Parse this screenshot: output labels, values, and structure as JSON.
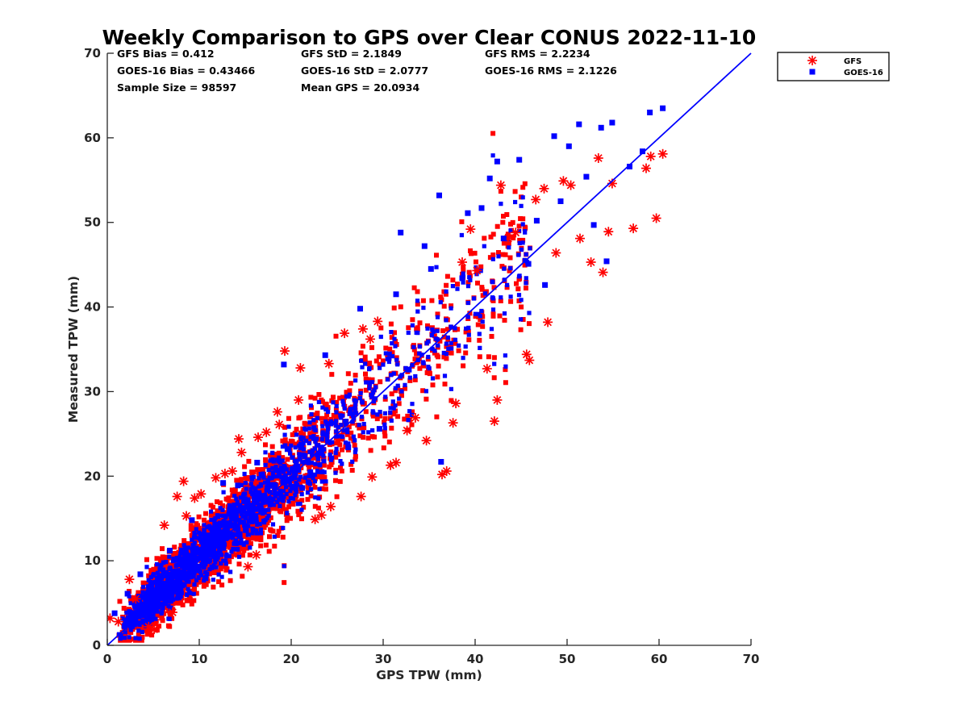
{
  "chart_data": {
    "type": "scatter",
    "title": "Weekly Comparison to GPS over Clear CONUS 2022-11-10",
    "xlabel": "GPS TPW (mm)",
    "ylabel": "Measured TPW (mm)",
    "xlim": [
      0,
      70
    ],
    "ylim": [
      0,
      70
    ],
    "xticks": [
      "0",
      "10",
      "20",
      "30",
      "40",
      "50",
      "60",
      "70"
    ],
    "yticks": [
      "0",
      "10",
      "20",
      "30",
      "40",
      "50",
      "60",
      "70"
    ],
    "legend_position": "outside-top-right",
    "grid": false,
    "one_to_one_line": [
      [
        0,
        0
      ],
      [
        70,
        70
      ]
    ],
    "stats": [
      [
        "GFS Bias = 0.412",
        "GFS StD = 2.1849",
        "GFS RMS = 2.2234"
      ],
      [
        "GOES-16 Bias = 0.43466",
        "GOES-16 StD = 2.0777",
        "GOES-16 RMS = 2.1226"
      ],
      [
        "Sample Size = 98597",
        "Mean GPS = 20.0934",
        ""
      ]
    ],
    "series": [
      {
        "name": "GFS",
        "marker": "asterisk",
        "color": "#ff0000",
        "points": [
          [
            0.3,
            3.2
          ],
          [
            1.2,
            2.8
          ],
          [
            2.4,
            7.8
          ],
          [
            3.1,
            5.5
          ],
          [
            4.5,
            2.2
          ],
          [
            5.1,
            1.9
          ],
          [
            6.2,
            14.2
          ],
          [
            7.1,
            3.9
          ],
          [
            7.6,
            17.6
          ],
          [
            8.3,
            19.4
          ],
          [
            8.6,
            15.3
          ],
          [
            9.5,
            17.4
          ],
          [
            10.2,
            17.9
          ],
          [
            11.8,
            19.8
          ],
          [
            12.8,
            20.3
          ],
          [
            13.6,
            20.6
          ],
          [
            14.3,
            24.4
          ],
          [
            14.6,
            22.8
          ],
          [
            15.3,
            9.3
          ],
          [
            16.4,
            24.6
          ],
          [
            16.2,
            10.7
          ],
          [
            17.3,
            25.2
          ],
          [
            18.5,
            27.6
          ],
          [
            18.7,
            26.1
          ],
          [
            19.3,
            34.8
          ],
          [
            20.8,
            29.0
          ],
          [
            21.0,
            32.8
          ],
          [
            22.6,
            14.9
          ],
          [
            23.3,
            15.4
          ],
          [
            24.1,
            33.3
          ],
          [
            24.3,
            16.4
          ],
          [
            25.8,
            36.9
          ],
          [
            27.6,
            17.6
          ],
          [
            27.8,
            37.4
          ],
          [
            28.6,
            36.2
          ],
          [
            28.8,
            19.9
          ],
          [
            29.4,
            38.3
          ],
          [
            30.8,
            21.3
          ],
          [
            31.4,
            21.6
          ],
          [
            32.6,
            25.4
          ],
          [
            33.5,
            26.9
          ],
          [
            34.7,
            24.2
          ],
          [
            36.4,
            20.2
          ],
          [
            36.9,
            20.6
          ],
          [
            37.6,
            26.3
          ],
          [
            37.9,
            28.6
          ],
          [
            38.6,
            45.3
          ],
          [
            39.5,
            49.2
          ],
          [
            40.2,
            44.3
          ],
          [
            41.3,
            32.7
          ],
          [
            42.1,
            26.5
          ],
          [
            42.4,
            29.0
          ],
          [
            42.8,
            54.4
          ],
          [
            43.6,
            48.1
          ],
          [
            44.4,
            48.8
          ],
          [
            45.6,
            34.4
          ],
          [
            45.9,
            33.7
          ],
          [
            46.6,
            52.7
          ],
          [
            47.5,
            54.0
          ],
          [
            47.9,
            38.2
          ],
          [
            48.8,
            46.4
          ],
          [
            49.6,
            54.9
          ],
          [
            50.4,
            54.4
          ],
          [
            51.4,
            48.1
          ],
          [
            52.6,
            45.3
          ],
          [
            53.4,
            57.6
          ],
          [
            53.9,
            44.1
          ],
          [
            54.5,
            48.9
          ],
          [
            54.9,
            54.6
          ],
          [
            57.2,
            49.3
          ],
          [
            58.6,
            56.4
          ],
          [
            59.1,
            57.8
          ],
          [
            59.7,
            50.5
          ],
          [
            60.4,
            58.1
          ]
        ]
      },
      {
        "name": "GOES-16",
        "marker": "square",
        "color": "#0000ff",
        "points": [
          [
            0.8,
            3.8
          ],
          [
            2.2,
            6.1
          ],
          [
            3.6,
            8.4
          ],
          [
            5.5,
            4.6
          ],
          [
            6.8,
            11.2
          ],
          [
            9.2,
            14.8
          ],
          [
            12.6,
            19.2
          ],
          [
            14.2,
            18.9
          ],
          [
            16.3,
            21.6
          ],
          [
            19.2,
            33.2
          ],
          [
            21.2,
            18.6
          ],
          [
            23.7,
            34.3
          ],
          [
            26.2,
            23.4
          ],
          [
            27.5,
            39.8
          ],
          [
            29.6,
            25.6
          ],
          [
            31.4,
            41.5
          ],
          [
            31.9,
            48.8
          ],
          [
            32.8,
            32.6
          ],
          [
            34.5,
            47.2
          ],
          [
            35.2,
            44.5
          ],
          [
            36.1,
            53.2
          ],
          [
            36.3,
            21.7
          ],
          [
            38.6,
            43.4
          ],
          [
            39.2,
            51.1
          ],
          [
            40.7,
            51.7
          ],
          [
            41.6,
            55.2
          ],
          [
            42.4,
            57.2
          ],
          [
            43.1,
            48.1
          ],
          [
            44.8,
            57.4
          ],
          [
            45.8,
            45.1
          ],
          [
            46.7,
            50.2
          ],
          [
            47.6,
            42.6
          ],
          [
            48.6,
            60.2
          ],
          [
            49.3,
            52.5
          ],
          [
            50.2,
            59.0
          ],
          [
            51.3,
            61.6
          ],
          [
            52.1,
            55.4
          ],
          [
            52.9,
            49.7
          ],
          [
            53.7,
            61.2
          ],
          [
            54.3,
            45.4
          ],
          [
            54.9,
            61.8
          ],
          [
            56.8,
            56.6
          ],
          [
            58.2,
            58.4
          ],
          [
            59.0,
            63.0
          ],
          [
            60.4,
            63.5
          ]
        ]
      }
    ]
  }
}
